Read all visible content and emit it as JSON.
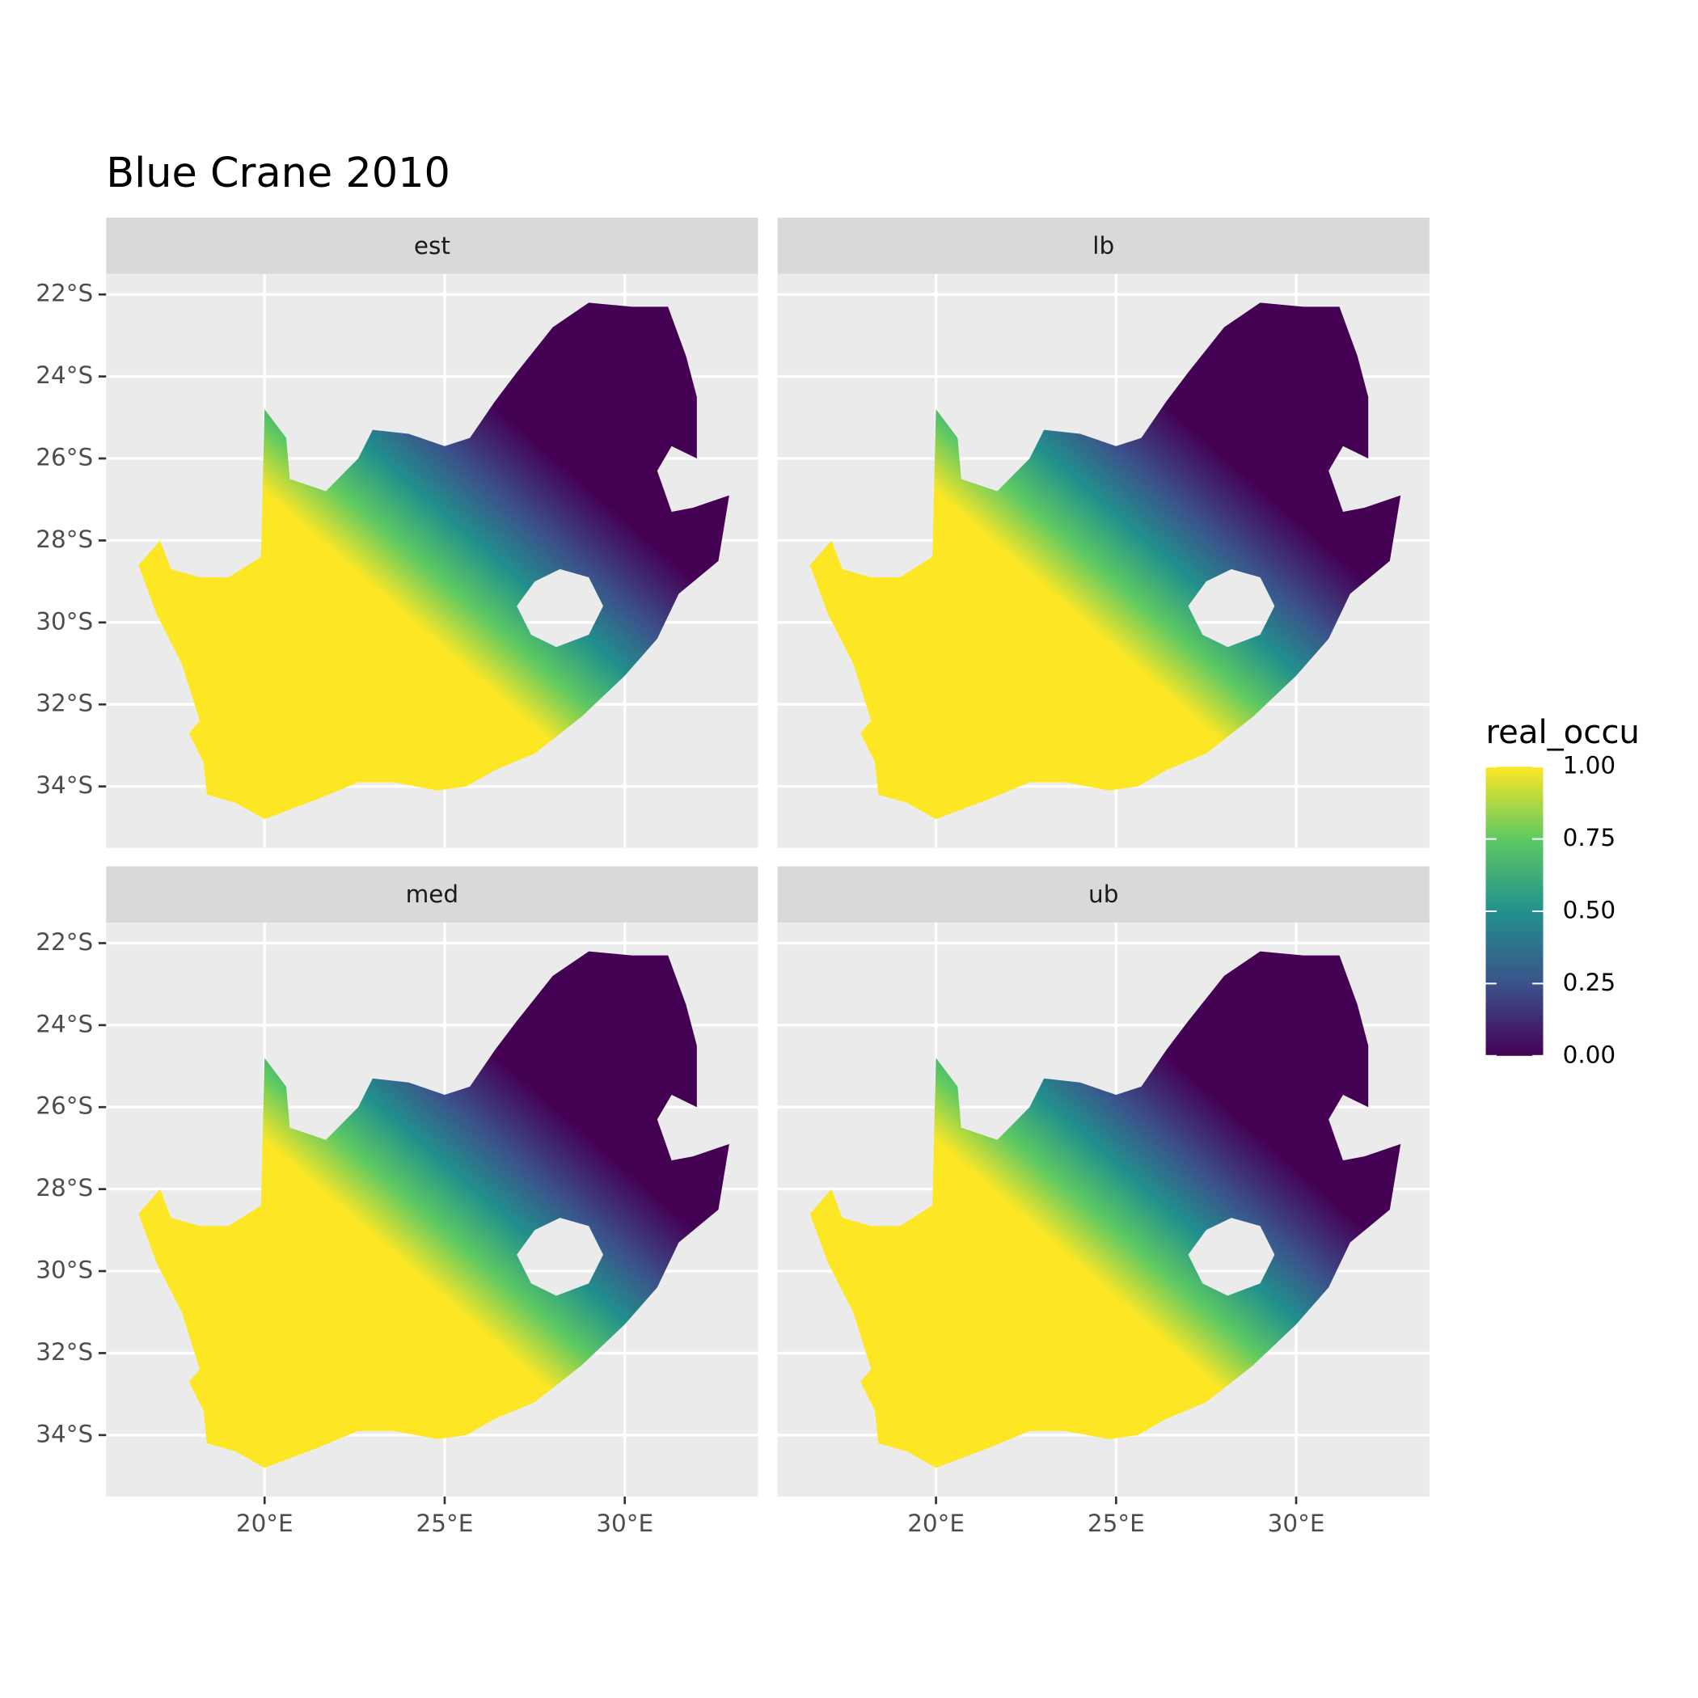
{
  "chart_data": {
    "type": "map",
    "title": "Blue Crane 2010",
    "facets": [
      "est",
      "lb",
      "med",
      "ub"
    ],
    "xlim": [
      15.6,
      33.7
    ],
    "ylim": [
      -35.5,
      -21.5
    ],
    "xticks": [
      {
        "value": 20,
        "label": "20°E"
      },
      {
        "value": 25,
        "label": "25°E"
      },
      {
        "value": 30,
        "label": "30°E"
      }
    ],
    "yticks": [
      {
        "value": -22,
        "label": "22°S"
      },
      {
        "value": -24,
        "label": "24°S"
      },
      {
        "value": -26,
        "label": "26°S"
      },
      {
        "value": -28,
        "label": "28°S"
      },
      {
        "value": -30,
        "label": "30°S"
      },
      {
        "value": -32,
        "label": "32°S"
      },
      {
        "value": -34,
        "label": "34°S"
      }
    ],
    "grid": true,
    "legend": {
      "title": "real_occu",
      "limits": [
        0,
        1
      ],
      "ticks": [
        {
          "value": 0,
          "label": "0.00"
        },
        {
          "value": 0.25,
          "label": "0.25"
        },
        {
          "value": 0.5,
          "label": "0.50"
        },
        {
          "value": 0.75,
          "label": "0.75"
        },
        {
          "value": 1,
          "label": "1.00"
        }
      ],
      "colors": [
        "#440154",
        "#3b528b",
        "#21918c",
        "#5ec962",
        "#fde725"
      ]
    }
  }
}
